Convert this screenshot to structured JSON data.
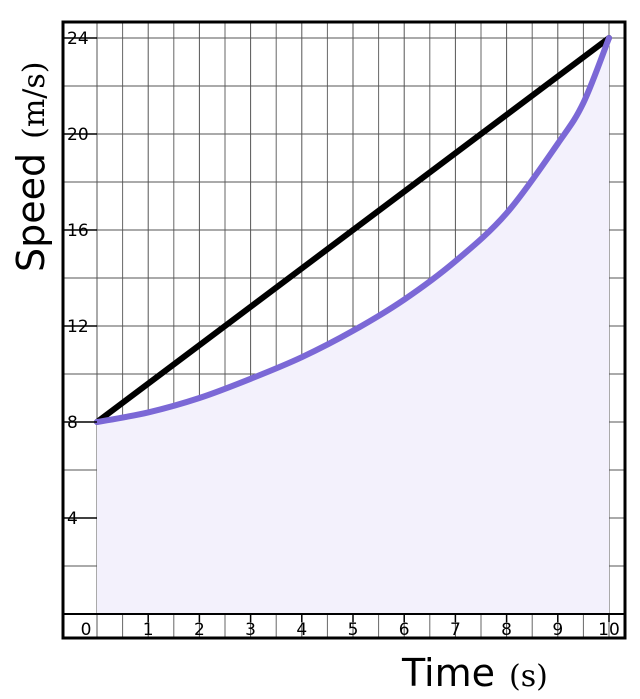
{
  "chart_data": {
    "type": "line",
    "xlabel": "Time",
    "xunit": "(s)",
    "ylabel": "Speed",
    "yunit": "(m/s)",
    "xlim": [
      0,
      10
    ],
    "ylim": [
      0,
      24
    ],
    "xticks": [
      0,
      1,
      2,
      3,
      4,
      5,
      6,
      7,
      8,
      9,
      10
    ],
    "yticks": [
      4,
      8,
      12,
      16,
      20,
      24
    ],
    "grid": true,
    "series": [
      {
        "color": "#000000",
        "x": [
          0,
          10
        ],
        "y": [
          8,
          24
        ]
      },
      {
        "color": "#7b68d6",
        "fill": "#f3f1fc",
        "x": [
          0,
          1,
          2,
          3,
          4,
          5,
          6,
          7,
          8,
          9,
          9.5,
          10
        ],
        "y": [
          8,
          8.4,
          9.0,
          9.8,
          10.7,
          11.8,
          13.1,
          14.7,
          16.7,
          19.6,
          21.3,
          24
        ]
      }
    ]
  }
}
